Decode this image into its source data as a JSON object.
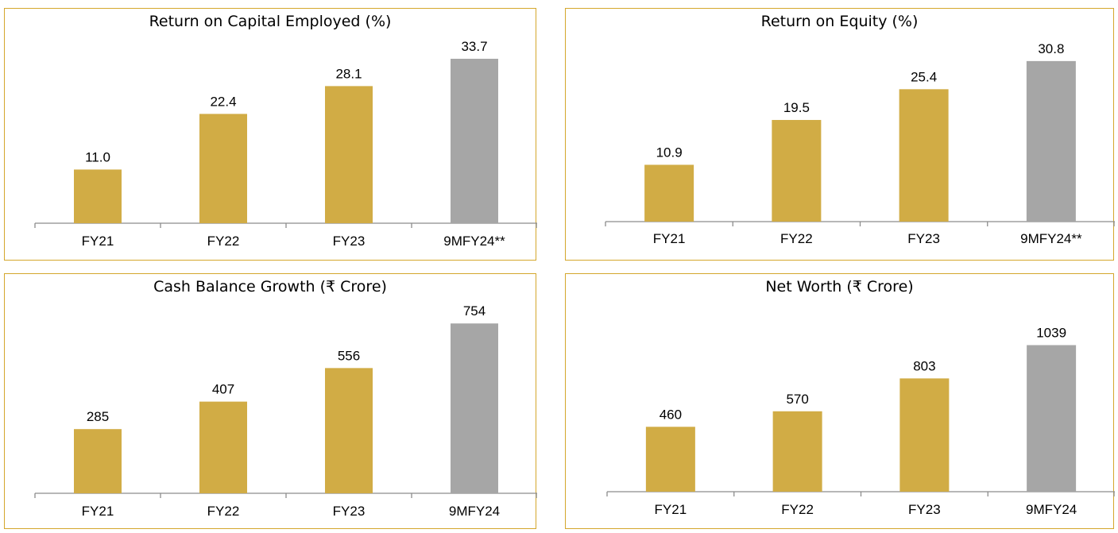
{
  "colors": {
    "border": "#d4a72c",
    "bar": "#d1ac45",
    "highlight_bar": "#a6a6a6",
    "axis": "#8c8c8c"
  },
  "chart_data": [
    {
      "type": "bar",
      "title": "Return on Capital Employed (%)",
      "categories": [
        "FY21",
        "FY22",
        "FY23",
        "9MFY24**"
      ],
      "values": [
        11.0,
        22.4,
        28.1,
        33.7
      ],
      "value_labels": [
        "11.0",
        "22.4",
        "28.1",
        "33.7"
      ],
      "highlight_index": 3,
      "ylim": [
        0,
        35
      ]
    },
    {
      "type": "bar",
      "title": "Return on Equity (%)",
      "categories": [
        "FY21",
        "FY22",
        "FY23",
        "9MFY24**"
      ],
      "values": [
        10.9,
        19.5,
        25.4,
        30.8
      ],
      "value_labels": [
        "10.9",
        "19.5",
        "25.4",
        "30.8"
      ],
      "highlight_index": 3,
      "ylim": [
        0,
        32
      ]
    },
    {
      "type": "bar",
      "title": "Cash Balance Growth (₹ Crore)",
      "categories": [
        "FY21",
        "FY22",
        "FY23",
        "9MFY24"
      ],
      "values": [
        285,
        407,
        556,
        754
      ],
      "value_labels": [
        "285",
        "407",
        "556",
        "754"
      ],
      "highlight_index": 3,
      "ylim": [
        0,
        790
      ]
    },
    {
      "type": "bar",
      "title": "Net Worth (₹ Crore)",
      "categories": [
        "FY21",
        "FY22",
        "FY23",
        "9MFY24"
      ],
      "values": [
        460,
        570,
        803,
        1039
      ],
      "value_labels": [
        "460",
        "570",
        "803",
        "1039"
      ],
      "highlight_index": 3,
      "ylim": [
        0,
        1250
      ]
    }
  ]
}
